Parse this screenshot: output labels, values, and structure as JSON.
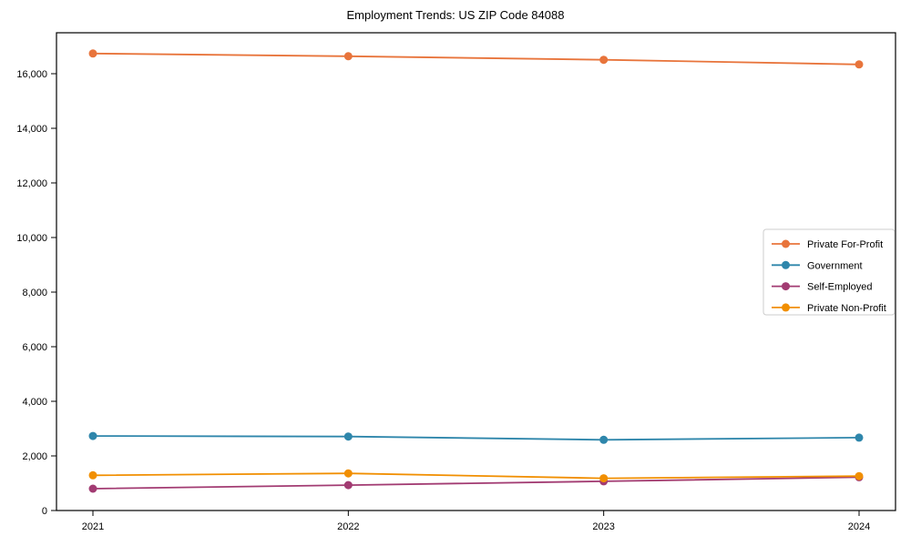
{
  "figure": {
    "background_color": "#ffffff",
    "axes_border_color": "#000000",
    "legend_border_color": "#cccccc"
  },
  "chart_data": {
    "type": "line",
    "title": "Employment Trends: US ZIP Code 84088",
    "x_labels": [
      "2021",
      "2022",
      "2023",
      "2024"
    ],
    "series": [
      {
        "name": "Private For-Profit",
        "color": "#E8743B",
        "values": [
          16740,
          16640,
          16510,
          16340
        ]
      },
      {
        "name": "Government",
        "color": "#2E86AB",
        "values": [
          2730,
          2710,
          2590,
          2670
        ]
      },
      {
        "name": "Self-Employed",
        "color": "#A23B72",
        "values": [
          800,
          930,
          1070,
          1220
        ]
      },
      {
        "name": "Private Non-Profit",
        "color": "#F18F01",
        "values": [
          1290,
          1360,
          1180,
          1260
        ]
      }
    ],
    "ylim": [
      0,
      17500
    ],
    "yticks": [
      0,
      2000,
      4000,
      6000,
      8000,
      10000,
      12000,
      14000,
      16000
    ],
    "ytick_labels": [
      "0",
      "2,000",
      "4,000",
      "6,000",
      "8,000",
      "10,000",
      "12,000",
      "14,000",
      "16,000"
    ],
    "xlabel": "",
    "ylabel": "",
    "grid": false,
    "marker": "circle",
    "legend_position": "center-right"
  }
}
